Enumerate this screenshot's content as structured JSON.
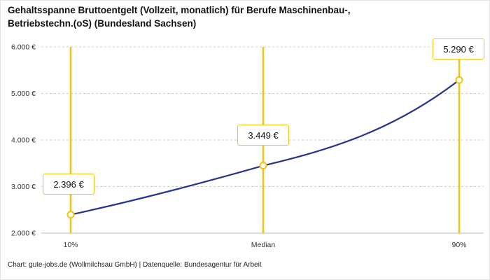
{
  "title": {
    "line1": "Gehaltsspanne Bruttoentgelt (Vollzeit, monatlich) für Berufe Maschinenbau-,",
    "line2": "Betriebstechn.(oS) (Bundesland Sachsen)"
  },
  "footer": "Chart: gute-jobs.de (Wollmilchsau GmbH) | Datenquelle: Bundesagentur für Arbeit",
  "colors": {
    "accent_yellow": "#F1C40F",
    "line_blue": "#27348B",
    "grid_gray": "#CCCCCC",
    "axis_gray": "#BBBBBB",
    "label_gray": "#333333"
  },
  "chart_data": {
    "type": "line",
    "title": "Gehaltsspanne Bruttoentgelt (Vollzeit, monatlich) für Berufe Maschinenbau-, Betriebstechn.(oS) (Bundesland Sachsen)",
    "ylabel": "",
    "xlabel": "",
    "ylim": [
      2000,
      6000
    ],
    "grid": "dashed horizontal gridlines",
    "legend": "none",
    "yticks": [
      {
        "value": 2000,
        "label": "2.000 €"
      },
      {
        "value": 3000,
        "label": "3.000 €"
      },
      {
        "value": 4000,
        "label": "4.000 €"
      },
      {
        "value": 5000,
        "label": "5.000 €"
      },
      {
        "value": 6000,
        "label": "6.000 €"
      }
    ],
    "points": [
      {
        "x_label": "10%",
        "value": 2396,
        "display": "2.396 €"
      },
      {
        "x_label": "Median",
        "value": 3449,
        "display": "3.449 €"
      },
      {
        "x_label": "90%",
        "value": 5290,
        "display": "5.290 €"
      }
    ]
  }
}
